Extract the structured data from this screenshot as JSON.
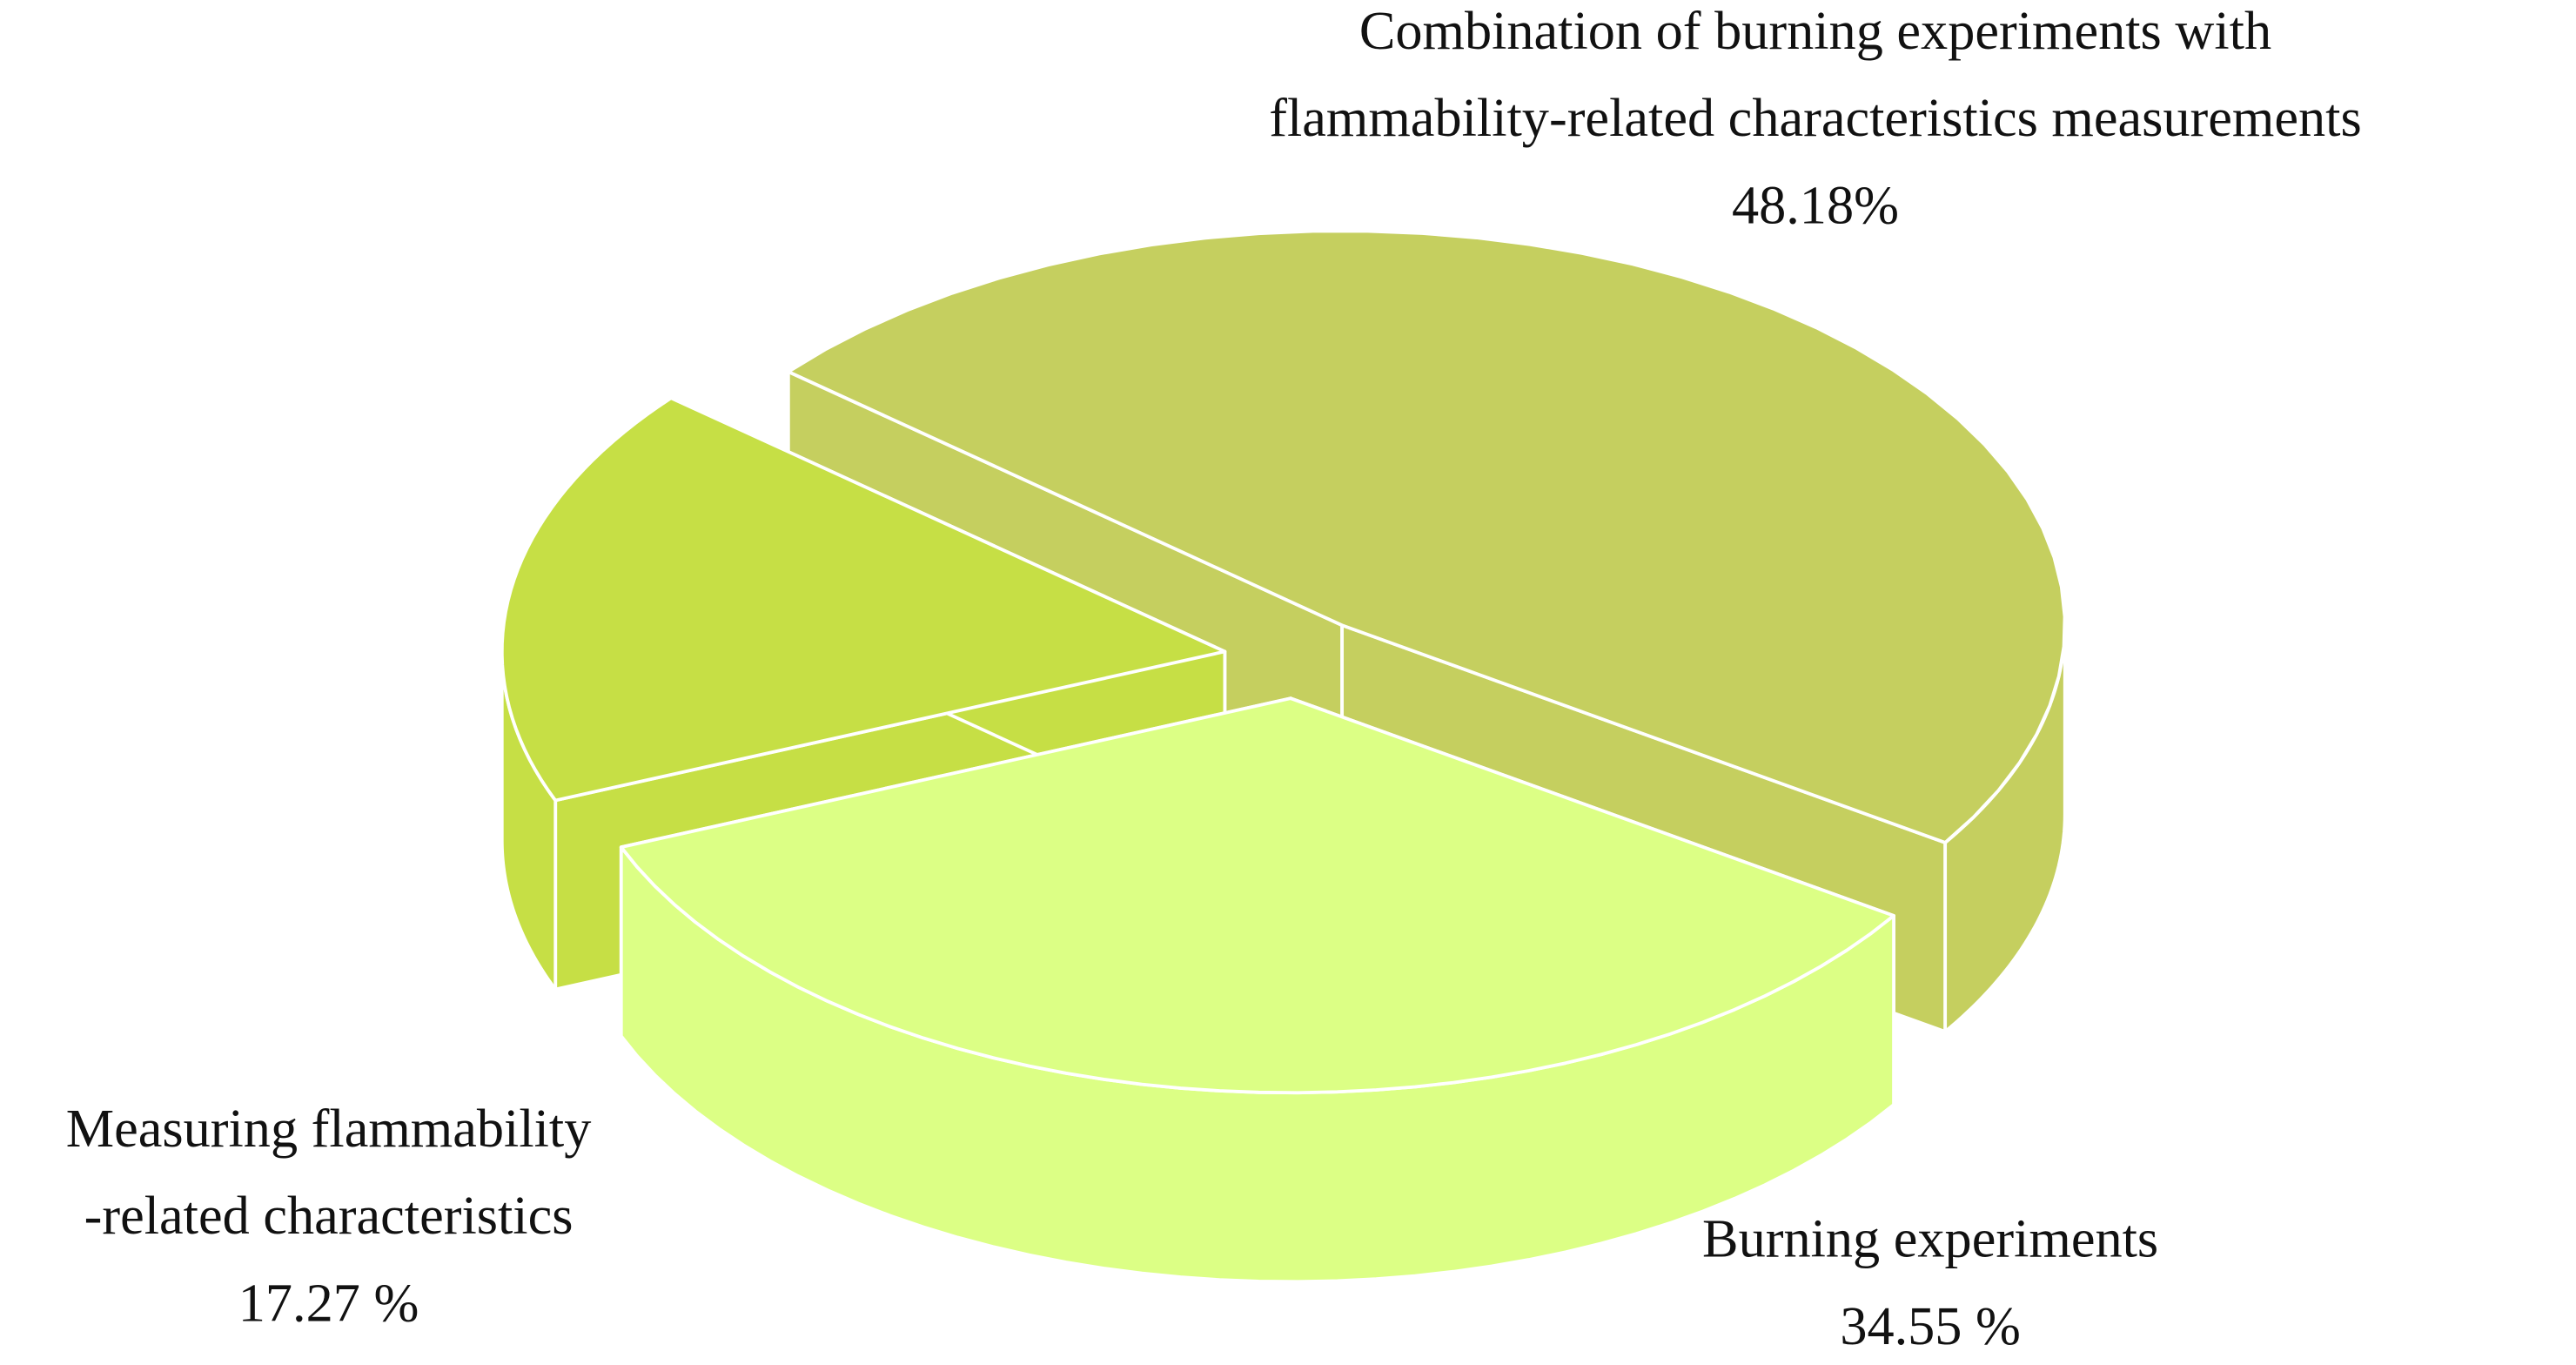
{
  "chart_data": {
    "type": "pie3d",
    "categories": [
      "Combination of burning experiments with\nflammability-related characteristics measurements",
      "Burning experiments",
      "Measuring flammability\n-related characteristics"
    ],
    "values": [
      48.18,
      34.55,
      17.27
    ],
    "value_labels": [
      "48.18%",
      "34.55 %",
      "17.27 %"
    ],
    "colors": [
      "#c5cf5f",
      "#dcff85",
      "#c6df45"
    ]
  }
}
